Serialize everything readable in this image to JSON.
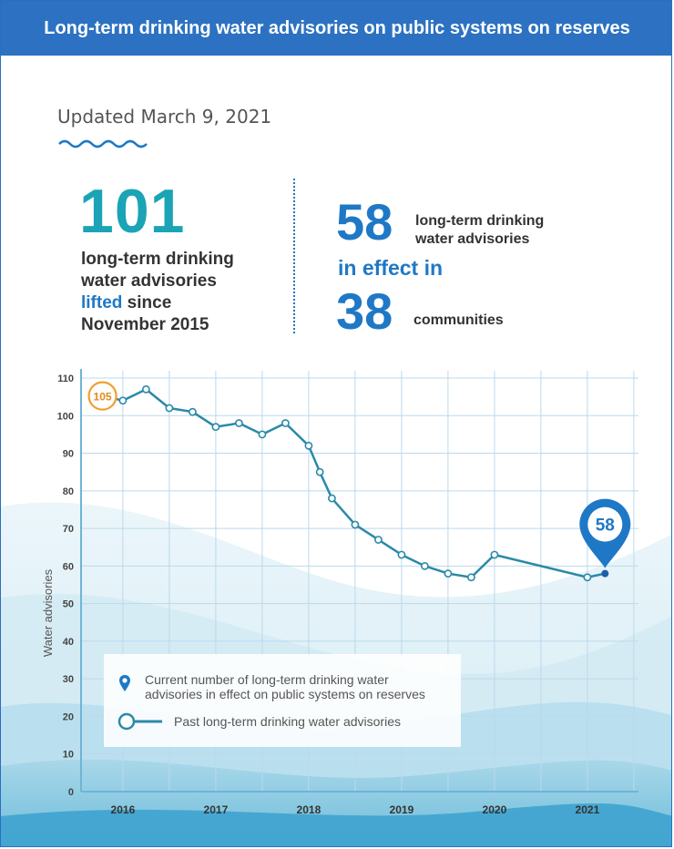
{
  "header": {
    "title": "Long-term drinking water advisories on public systems on reserves"
  },
  "updated": "Updated March 9, 2021",
  "stats": {
    "lifted_number": "101",
    "lifted_line1": "long-term drinking",
    "lifted_line2": "water advisories",
    "lifted_word": "lifted",
    "lifted_since": " since",
    "lifted_line4": "November 2015",
    "in_effect_number": "58",
    "in_effect_line1": "long-term drinking",
    "in_effect_line2": "water advisories",
    "in_effect_label": "in effect in",
    "communities_number": "38",
    "communities_label": "communities"
  },
  "legend": {
    "current_line1": "Current number of long-term drinking water",
    "current_line2": "advisories in effect on public systems on reserves",
    "past": "Past long-term drinking water advisories"
  },
  "colors": {
    "header": "#2d72c2",
    "accent_blue": "#1f78c6",
    "line": "#2a8aa8",
    "start_badge": "#f0a030"
  },
  "chart_data": {
    "type": "line",
    "ylabel": "Water advisories",
    "ylim": [
      0,
      110
    ],
    "yticks": [
      0,
      10,
      20,
      30,
      40,
      50,
      60,
      70,
      80,
      90,
      100,
      110
    ],
    "xticks": [
      "2016",
      "2017",
      "2018",
      "2019",
      "2020",
      "2021"
    ],
    "series": [
      {
        "x": [
          2015.83,
          2016.0,
          2016.25,
          2016.5,
          2016.75,
          2017.0,
          2017.25,
          2017.5,
          2017.75,
          2018.0,
          2018.12,
          2018.25,
          2018.5,
          2018.75,
          2019.0,
          2019.25,
          2019.5,
          2019.75,
          2020.0,
          2021.0,
          2021.19
        ],
        "values": [
          105,
          104,
          107,
          102,
          101,
          97,
          98,
          95,
          98,
          92,
          85,
          78,
          71,
          67,
          63,
          60,
          58,
          57,
          63,
          57,
          58
        ]
      }
    ],
    "start_label": "105",
    "current_label": "58"
  }
}
